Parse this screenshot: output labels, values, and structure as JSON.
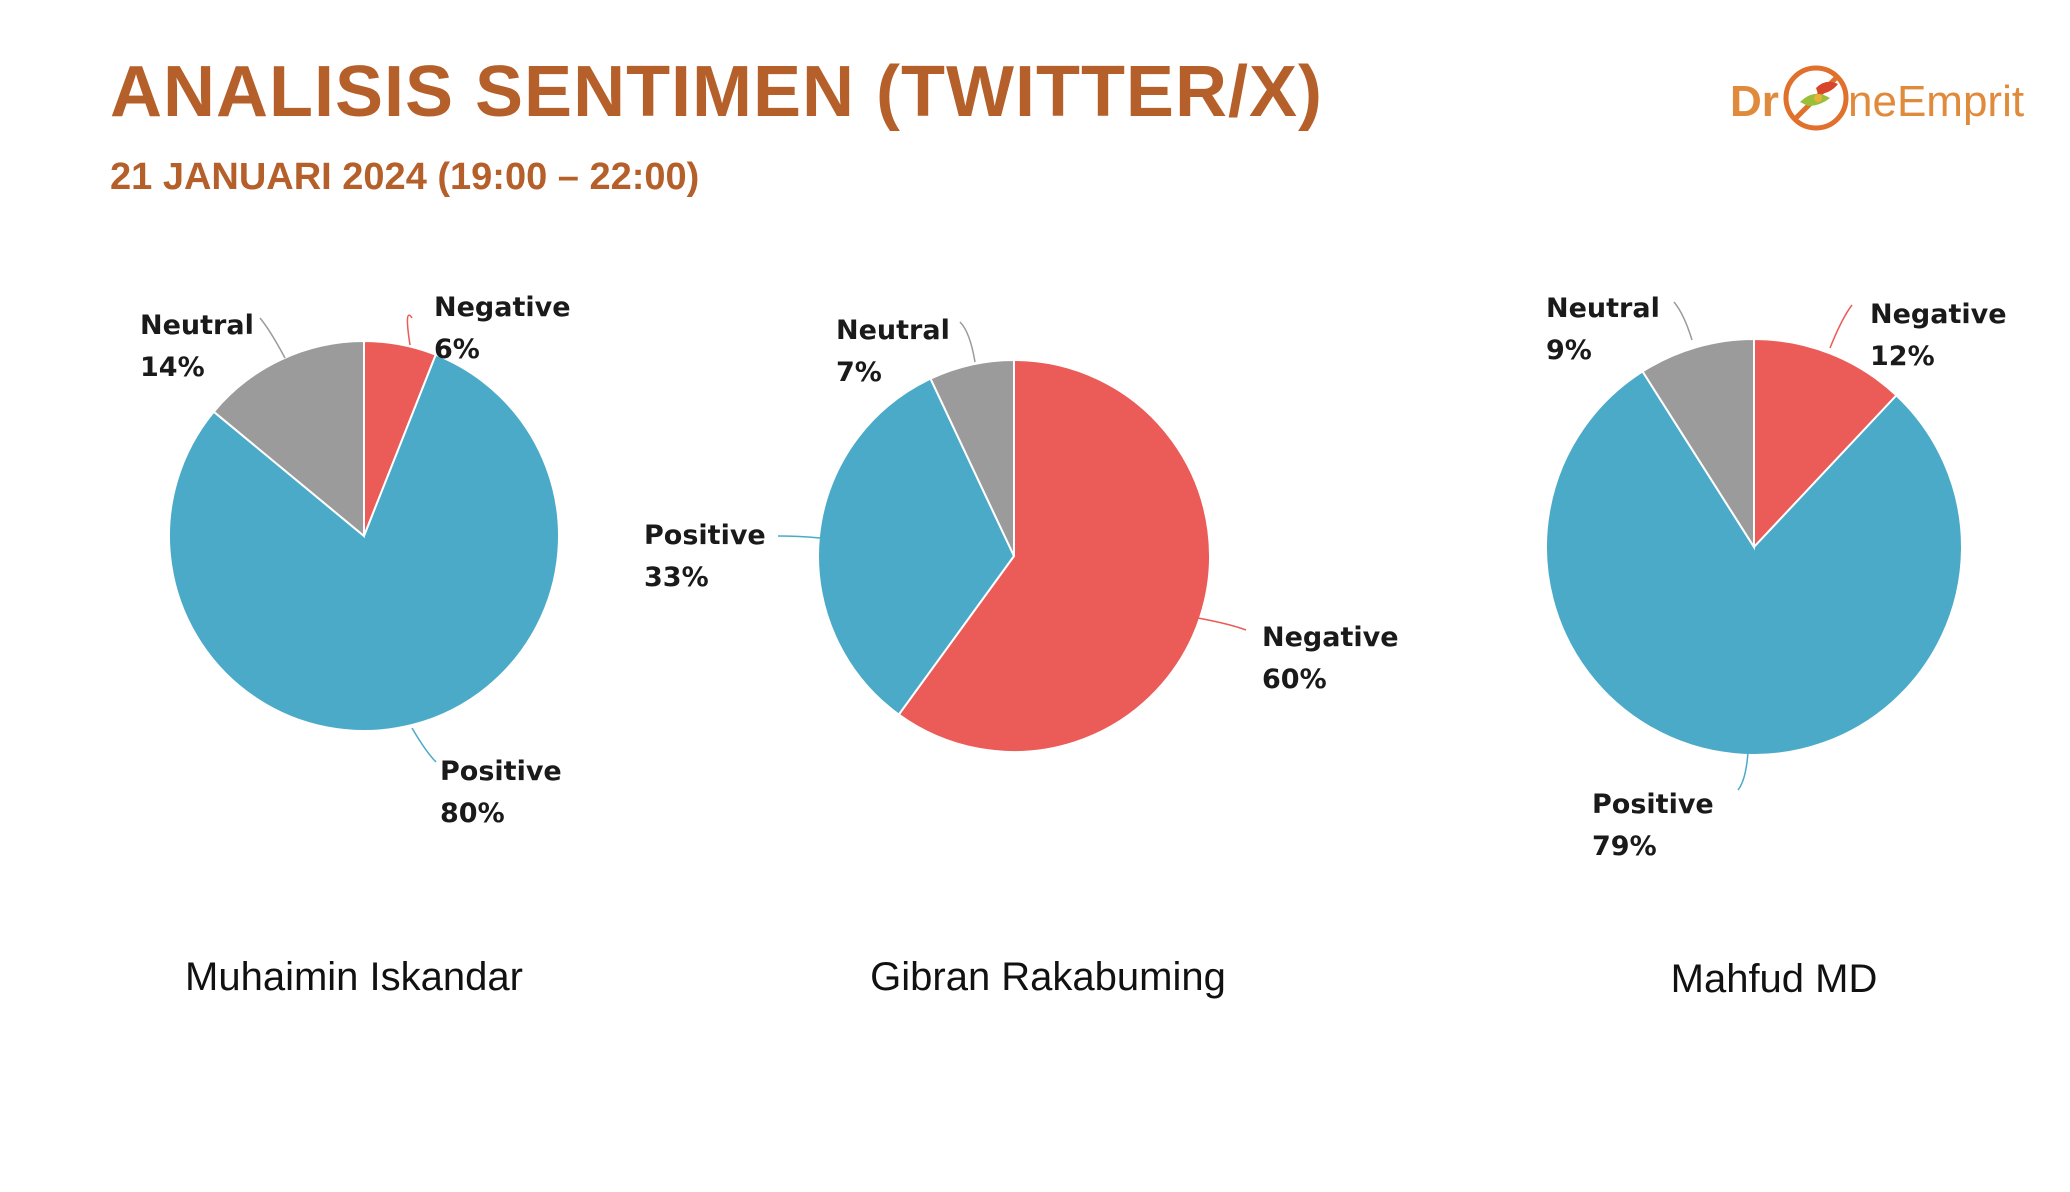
{
  "header": {
    "title": "ANALISIS SENTIMEN (TWITTER/X)",
    "subtitle": "21 JANUARI 2024 (19:00 – 22:00)",
    "logo_text_left": "Dr",
    "logo_text_right": "neEmprit",
    "title_color": "#B5602A",
    "logo_text_color": "#E08A3C"
  },
  "colors": {
    "Negative": "#EB5B57",
    "Positive": "#4BAAC8",
    "Neutral": "#9B9B9B"
  },
  "chart_data": [
    {
      "type": "pie",
      "title": "Muhaimin Iskandar",
      "categories": [
        "Negative",
        "Positive",
        "Neutral"
      ],
      "values": [
        6,
        80,
        14
      ],
      "labels": [
        "6%",
        "80%",
        "14%"
      ]
    },
    {
      "type": "pie",
      "title": "Gibran Rakabuming",
      "categories": [
        "Negative",
        "Positive",
        "Neutral"
      ],
      "values": [
        60,
        33,
        7
      ],
      "labels": [
        "60%",
        "33%",
        "7%"
      ]
    },
    {
      "type": "pie",
      "title": "Mahfud MD",
      "categories": [
        "Negative",
        "Positive",
        "Neutral"
      ],
      "values": [
        12,
        79,
        9
      ],
      "labels": [
        "12%",
        "79%",
        "9%"
      ]
    }
  ]
}
